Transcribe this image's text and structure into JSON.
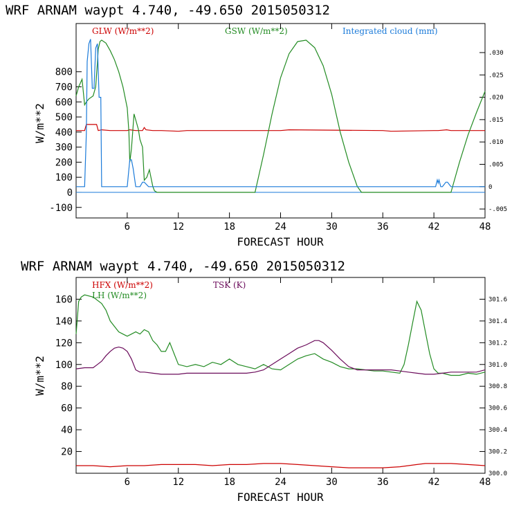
{
  "chart_data": [
    {
      "type": "line",
      "title": "WRF   ARNAM waypt    4.740, -49.650  2015050312",
      "xlabel": "FORECAST HOUR",
      "ylabel": "W/m**2",
      "xlim": [
        0,
        48
      ],
      "ylim": [
        -170,
        1120
      ],
      "y2lim": [
        -0.007,
        0.0365
      ],
      "xticks": [
        6,
        12,
        18,
        24,
        30,
        36,
        42,
        48
      ],
      "xtick_labels": [
        "6",
        "12",
        "18",
        "24",
        "30",
        "36",
        "42",
        "48"
      ],
      "yticks": [
        -100,
        0,
        100,
        200,
        300,
        400,
        500,
        600,
        700,
        800
      ],
      "ytick_labels": [
        "-100",
        "0",
        "100",
        "200",
        "300",
        "400",
        "500",
        "600",
        "700",
        "800"
      ],
      "y2ticks": [
        -0.005,
        0,
        0.005,
        0.01,
        0.015,
        0.02,
        0.025,
        0.03
      ],
      "y2tick_labels": [
        "-.005",
        "0",
        ".005",
        ".010",
        ".015",
        ".020",
        ".025",
        ".030"
      ],
      "series": [
        {
          "name": "GLW (W/m**2)",
          "color": "#cc0000",
          "axis": "left",
          "x": [
            0,
            1,
            1.2,
            2.4,
            2.6,
            3,
            4,
            5,
            6,
            6.3,
            7,
            7.8,
            8,
            8.2,
            9,
            10,
            12,
            13,
            24,
            25,
            36,
            37,
            42,
            42.5,
            43.5,
            44,
            48
          ],
          "y": [
            410,
            410,
            450,
            450,
            410,
            415,
            410,
            410,
            410,
            415,
            410,
            410,
            430,
            415,
            410,
            410,
            405,
            410,
            410,
            415,
            410,
            405,
            410,
            410,
            415,
            410,
            410
          ]
        },
        {
          "name": "GSW (W/m**2)",
          "color": "#228B22",
          "axis": "left",
          "x": [
            0,
            0.3,
            0.7,
            1,
            1.2,
            1.5,
            2,
            2.3,
            2.5,
            2.6,
            2.8,
            3,
            3.5,
            4,
            4.5,
            5,
            5.5,
            6,
            6.2,
            6.3,
            6.5,
            6.8,
            7,
            7.3,
            7.5,
            7.8,
            8,
            8.3,
            8.6,
            9,
            9.2,
            9.5,
            21,
            22,
            23,
            24,
            25,
            26,
            27,
            28,
            29,
            30,
            31,
            32,
            33,
            33.5,
            44,
            45,
            46,
            47,
            48
          ],
          "y": [
            640,
            700,
            750,
            580,
            600,
            620,
            640,
            700,
            860,
            950,
            1000,
            1010,
            990,
            940,
            880,
            800,
            700,
            560,
            400,
            200,
            290,
            520,
            480,
            420,
            350,
            300,
            80,
            100,
            150,
            40,
            10,
            0,
            0,
            250,
            520,
            760,
            920,
            1000,
            1010,
            960,
            840,
            650,
            400,
            200,
            40,
            0,
            0,
            200,
            380,
            530,
            670
          ]
        },
        {
          "name": "Integrated cloud (mm)",
          "color": "#1a7ad9",
          "axis": "right",
          "x": [
            0,
            0.5,
            1,
            1.2,
            1.3,
            1.5,
            1.7,
            1.9,
            2.1,
            2.3,
            2.5,
            2.7,
            2.9,
            3,
            3.5,
            5,
            6,
            6.1,
            6.3,
            6.5,
            6.7,
            7,
            7.5,
            7.8,
            8,
            8.5,
            9,
            42.2,
            42.4,
            42.5,
            42.6,
            42.8,
            43,
            43.2,
            43.4,
            43.6,
            43.8,
            44,
            48
          ],
          "y": [
            0,
            0,
            0,
            0.012,
            0.028,
            0.032,
            0.033,
            0.022,
            0.022,
            0.031,
            0.032,
            0.02,
            0.02,
            0,
            0,
            0,
            0,
            0.002,
            0.006,
            0.006,
            0.004,
            0,
            0,
            0.001,
            0.001,
            0,
            0,
            0,
            0.0015,
            0.0008,
            0.0015,
            0,
            0,
            0.0005,
            0.001,
            0.001,
            0.0005,
            0,
            0
          ]
        }
      ]
    },
    {
      "type": "line",
      "title": "WRF   ARNAM waypt    4.740, -49.650  2015050312",
      "xlabel": "FORECAST HOUR",
      "ylabel": "W/m**2",
      "xlim": [
        0,
        48
      ],
      "ylim": [
        0,
        180
      ],
      "y2lim": [
        300.0,
        301.8
      ],
      "xticks": [
        6,
        12,
        18,
        24,
        30,
        36,
        42,
        48
      ],
      "xtick_labels": [
        "6",
        "12",
        "18",
        "24",
        "30",
        "36",
        "42",
        "48"
      ],
      "yticks": [
        20,
        40,
        60,
        80,
        100,
        120,
        140,
        160
      ],
      "ytick_labels": [
        "20",
        "40",
        "60",
        "80",
        "100",
        "120",
        "140",
        "160"
      ],
      "y2ticks": [
        300.0,
        300.2,
        300.4,
        300.6,
        300.8,
        301.0,
        301.2,
        301.4,
        301.6
      ],
      "y2tick_labels": [
        "300.0",
        "300.2",
        "300.4",
        "300.6",
        "300.8",
        "301.0",
        "301.2",
        "301.4",
        "301.6"
      ],
      "series": [
        {
          "name": "HFX (W/m**2)",
          "color": "#cc0000",
          "axis": "left",
          "x": [
            0,
            2,
            4,
            6,
            8,
            10,
            12,
            14,
            16,
            18,
            20,
            22,
            24,
            26,
            28,
            30,
            32,
            34,
            36,
            38,
            40,
            41,
            42,
            44,
            46,
            48
          ],
          "y": [
            7,
            7,
            6,
            7,
            7,
            8,
            8,
            8,
            7,
            8,
            8,
            9,
            9,
            8,
            7,
            6,
            5,
            5,
            5,
            6,
            8,
            9,
            9,
            9,
            8,
            7
          ]
        },
        {
          "name": "LH  (W/m**2)",
          "color": "#228B22",
          "axis": "left",
          "x": [
            0,
            0.3,
            0.6,
            1,
            2,
            3,
            3.5,
            4,
            4.5,
            5,
            5.5,
            6,
            6.5,
            7,
            7.5,
            8,
            8.5,
            9,
            9.5,
            10,
            10.5,
            11,
            11.5,
            12,
            13,
            14,
            15,
            16,
            17,
            18,
            19,
            20,
            21,
            22,
            23,
            24,
            25,
            26,
            27,
            28,
            29,
            30,
            31,
            32,
            33,
            34,
            35,
            36,
            37,
            38,
            38.5,
            39,
            39.5,
            40,
            40.5,
            41,
            41.5,
            42,
            42.5,
            43,
            44,
            45,
            46,
            47,
            48
          ],
          "y": [
            128,
            158,
            162,
            164,
            162,
            156,
            150,
            140,
            135,
            130,
            128,
            126,
            128,
            130,
            128,
            132,
            130,
            122,
            118,
            112,
            112,
            120,
            110,
            100,
            98,
            100,
            98,
            102,
            100,
            105,
            100,
            98,
            96,
            100,
            96,
            95,
            100,
            105,
            108,
            110,
            105,
            102,
            98,
            96,
            96,
            95,
            94,
            94,
            93,
            92,
            100,
            118,
            138,
            158,
            150,
            130,
            110,
            96,
            92,
            92,
            90,
            90,
            92,
            91,
            93
          ]
        },
        {
          "name": "TSK (K)",
          "color": "#6a0a5a",
          "axis": "right",
          "x": [
            0,
            1,
            2,
            2.5,
            3,
            3.5,
            4,
            4.5,
            5,
            5.5,
            6,
            6.5,
            7,
            7.5,
            8,
            9,
            10,
            11,
            12,
            13,
            14,
            15,
            16,
            17,
            18,
            19,
            20,
            21,
            22,
            23,
            24,
            25,
            26,
            27,
            28,
            28.5,
            29,
            30,
            31,
            32,
            33,
            34,
            35,
            36,
            37,
            38,
            39,
            40,
            41,
            42,
            43,
            44,
            45,
            46,
            47,
            48
          ],
          "y": [
            300.96,
            300.97,
            300.97,
            301.0,
            301.03,
            301.08,
            301.12,
            301.15,
            301.16,
            301.15,
            301.12,
            301.05,
            300.95,
            300.93,
            300.93,
            300.92,
            300.91,
            300.91,
            300.91,
            300.92,
            300.92,
            300.92,
            300.92,
            300.92,
            300.92,
            300.92,
            300.92,
            300.93,
            300.95,
            301.0,
            301.05,
            301.1,
            301.15,
            301.18,
            301.22,
            301.22,
            301.2,
            301.13,
            301.05,
            300.98,
            300.95,
            300.95,
            300.95,
            300.95,
            300.95,
            300.94,
            300.93,
            300.92,
            300.91,
            300.91,
            300.92,
            300.93,
            300.93,
            300.93,
            300.93,
            300.95
          ]
        }
      ]
    }
  ],
  "legends": {
    "top": {
      "glw": "GLW (W/m**2)",
      "gsw": "GSW (W/m**2)",
      "cloud": "Integrated cloud (mm)"
    },
    "bottom": {
      "hfx": "HFX (W/m**2)",
      "lh": "LH  (W/m**2)",
      "tsk": "TSK (K)"
    }
  },
  "colors": {
    "red": "#cc0000",
    "green": "#228B22",
    "blue": "#1a7ad9",
    "purple": "#6a0a5a"
  }
}
